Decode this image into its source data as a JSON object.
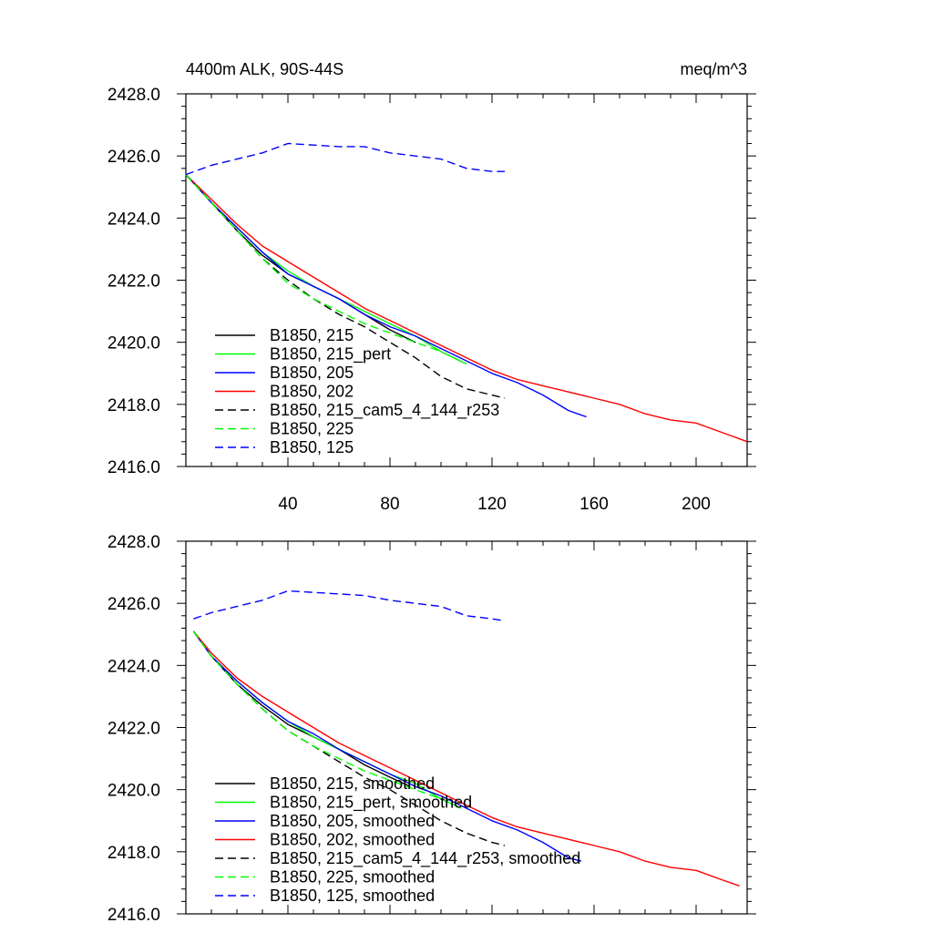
{
  "chart_data": [
    {
      "type": "line",
      "title": "4400m ALK, 90S-44S",
      "units": "meq/m^3",
      "xlabel": "",
      "ylabel": "",
      "xlim": [
        0,
        220
      ],
      "ylim": [
        2416,
        2428
      ],
      "xticks": [
        40,
        80,
        120,
        160,
        200
      ],
      "xtick_labels": [
        "40",
        "80",
        "120",
        "160",
        "200"
      ],
      "yticks": [
        2416,
        2418,
        2420,
        2422,
        2424,
        2426,
        2428
      ],
      "ytick_labels": [
        "2416.0",
        "2418.0",
        "2420.0",
        "2422.0",
        "2424.0",
        "2426.0",
        "2428.0"
      ],
      "legend_position": "bottom-left",
      "series": [
        {
          "name": "B1850, 215",
          "color": "#000000",
          "dash": "solid",
          "points": [
            [
              0,
              2425.4
            ],
            [
              10,
              2424.5
            ],
            [
              20,
              2423.6
            ],
            [
              30,
              2422.8
            ],
            [
              40,
              2422.2
            ],
            [
              50,
              2421.8
            ],
            [
              60,
              2421.4
            ],
            [
              70,
              2420.9
            ],
            [
              80,
              2420.4
            ],
            [
              90,
              2420.0
            ]
          ]
        },
        {
          "name": "B1850, 215_pert",
          "color": "#00ff00",
          "dash": "solid",
          "points": [
            [
              0,
              2425.4
            ],
            [
              10,
              2424.5
            ],
            [
              20,
              2423.7
            ],
            [
              30,
              2422.9
            ],
            [
              40,
              2422.3
            ],
            [
              50,
              2421.8
            ],
            [
              60,
              2421.4
            ],
            [
              70,
              2421.0
            ],
            [
              80,
              2420.6
            ],
            [
              90,
              2420.2
            ],
            [
              100,
              2419.7
            ],
            [
              110,
              2419.3
            ]
          ]
        },
        {
          "name": "B1850, 205",
          "color": "#0000ff",
          "dash": "solid",
          "points": [
            [
              0,
              2425.4
            ],
            [
              10,
              2424.5
            ],
            [
              20,
              2423.7
            ],
            [
              30,
              2422.9
            ],
            [
              40,
              2422.2
            ],
            [
              50,
              2421.8
            ],
            [
              60,
              2421.4
            ],
            [
              70,
              2420.9
            ],
            [
              80,
              2420.5
            ],
            [
              90,
              2420.2
            ],
            [
              100,
              2419.8
            ],
            [
              110,
              2419.4
            ],
            [
              120,
              2419.0
            ],
            [
              130,
              2418.7
            ],
            [
              140,
              2418.3
            ],
            [
              150,
              2417.8
            ],
            [
              157,
              2417.6
            ]
          ]
        },
        {
          "name": "B1850, 202",
          "color": "#ff0000",
          "dash": "solid",
          "points": [
            [
              0,
              2425.4
            ],
            [
              10,
              2424.6
            ],
            [
              20,
              2423.8
            ],
            [
              30,
              2423.1
            ],
            [
              40,
              2422.6
            ],
            [
              50,
              2422.1
            ],
            [
              60,
              2421.6
            ],
            [
              70,
              2421.1
            ],
            [
              80,
              2420.7
            ],
            [
              90,
              2420.3
            ],
            [
              100,
              2419.9
            ],
            [
              110,
              2419.5
            ],
            [
              120,
              2419.1
            ],
            [
              130,
              2418.8
            ],
            [
              140,
              2418.6
            ],
            [
              150,
              2418.4
            ],
            [
              160,
              2418.2
            ],
            [
              170,
              2418.0
            ],
            [
              180,
              2417.7
            ],
            [
              190,
              2417.5
            ],
            [
              200,
              2417.4
            ],
            [
              210,
              2417.1
            ],
            [
              220,
              2416.8
            ]
          ]
        },
        {
          "name": "B1850, 215_cam5_4_144_r253",
          "color": "#000000",
          "dash": "dashed",
          "points": [
            [
              0,
              2425.4
            ],
            [
              10,
              2424.5
            ],
            [
              20,
              2423.6
            ],
            [
              30,
              2422.7
            ],
            [
              40,
              2422.0
            ],
            [
              50,
              2421.4
            ],
            [
              60,
              2420.9
            ],
            [
              70,
              2420.5
            ],
            [
              80,
              2420.0
            ],
            [
              90,
              2419.5
            ],
            [
              100,
              2418.9
            ],
            [
              110,
              2418.5
            ],
            [
              120,
              2418.3
            ],
            [
              125,
              2418.2
            ]
          ]
        },
        {
          "name": "B1850, 225",
          "color": "#00ff00",
          "dash": "dashed",
          "points": [
            [
              0,
              2425.4
            ],
            [
              10,
              2424.5
            ],
            [
              20,
              2423.6
            ],
            [
              30,
              2422.7
            ],
            [
              40,
              2421.9
            ],
            [
              50,
              2421.4
            ],
            [
              60,
              2421.0
            ],
            [
              70,
              2420.6
            ],
            [
              80,
              2420.3
            ],
            [
              90,
              2420.0
            ],
            [
              100,
              2419.7
            ],
            [
              110,
              2419.3
            ]
          ]
        },
        {
          "name": "B1850, 125",
          "color": "#0000ff",
          "dash": "dashed",
          "points": [
            [
              0,
              2425.4
            ],
            [
              10,
              2425.7
            ],
            [
              20,
              2425.9
            ],
            [
              30,
              2426.1
            ],
            [
              40,
              2426.4
            ],
            [
              50,
              2426.35
            ],
            [
              60,
              2426.3
            ],
            [
              70,
              2426.3
            ],
            [
              80,
              2426.1
            ],
            [
              90,
              2426.0
            ],
            [
              100,
              2425.9
            ],
            [
              110,
              2425.6
            ],
            [
              120,
              2425.5
            ],
            [
              125,
              2425.5
            ]
          ]
        }
      ]
    },
    {
      "type": "line",
      "title": "",
      "xlabel": "",
      "ylabel": "",
      "xlim": [
        0,
        220
      ],
      "ylim": [
        2416,
        2428
      ],
      "yticks": [
        2416,
        2418,
        2420,
        2422,
        2424,
        2426,
        2428
      ],
      "ytick_labels": [
        "2416.0",
        "2418.0",
        "2420.0",
        "2422.0",
        "2424.0",
        "2426.0",
        "2428.0"
      ],
      "legend_position": "bottom-left",
      "series": [
        {
          "name": "B1850, 215, smoothed",
          "color": "#000000",
          "dash": "solid",
          "points": [
            [
              3,
              2425.1
            ],
            [
              10,
              2424.3
            ],
            [
              20,
              2423.4
            ],
            [
              30,
              2422.7
            ],
            [
              40,
              2422.1
            ],
            [
              50,
              2421.7
            ],
            [
              60,
              2421.3
            ],
            [
              70,
              2420.8
            ],
            [
              80,
              2420.4
            ],
            [
              88,
              2420.1
            ]
          ]
        },
        {
          "name": "B1850, 215_pert, smoothed",
          "color": "#00ff00",
          "dash": "solid",
          "points": [
            [
              3,
              2425.1
            ],
            [
              10,
              2424.3
            ],
            [
              20,
              2423.5
            ],
            [
              30,
              2422.8
            ],
            [
              40,
              2422.2
            ],
            [
              50,
              2421.7
            ],
            [
              60,
              2421.3
            ],
            [
              70,
              2420.9
            ],
            [
              80,
              2420.5
            ],
            [
              90,
              2420.2
            ],
            [
              100,
              2419.7
            ],
            [
              108,
              2419.4
            ]
          ]
        },
        {
          "name": "B1850, 205, smoothed",
          "color": "#0000ff",
          "dash": "solid",
          "points": [
            [
              3,
              2425.1
            ],
            [
              10,
              2424.3
            ],
            [
              20,
              2423.5
            ],
            [
              30,
              2422.8
            ],
            [
              40,
              2422.2
            ],
            [
              50,
              2421.8
            ],
            [
              60,
              2421.3
            ],
            [
              70,
              2420.9
            ],
            [
              80,
              2420.5
            ],
            [
              90,
              2420.1
            ],
            [
              100,
              2419.8
            ],
            [
              110,
              2419.4
            ],
            [
              120,
              2419.0
            ],
            [
              130,
              2418.7
            ],
            [
              140,
              2418.3
            ],
            [
              150,
              2417.8
            ],
            [
              155,
              2417.7
            ]
          ]
        },
        {
          "name": "B1850, 202, smoothed",
          "color": "#ff0000",
          "dash": "solid",
          "points": [
            [
              3,
              2425.1
            ],
            [
              10,
              2424.4
            ],
            [
              20,
              2423.6
            ],
            [
              30,
              2423.0
            ],
            [
              40,
              2422.5
            ],
            [
              50,
              2422.0
            ],
            [
              60,
              2421.5
            ],
            [
              70,
              2421.1
            ],
            [
              80,
              2420.7
            ],
            [
              90,
              2420.3
            ],
            [
              100,
              2419.9
            ],
            [
              110,
              2419.5
            ],
            [
              120,
              2419.1
            ],
            [
              130,
              2418.8
            ],
            [
              140,
              2418.6
            ],
            [
              150,
              2418.4
            ],
            [
              160,
              2418.2
            ],
            [
              170,
              2418.0
            ],
            [
              180,
              2417.7
            ],
            [
              190,
              2417.5
            ],
            [
              200,
              2417.4
            ],
            [
              210,
              2417.1
            ],
            [
              217,
              2416.9
            ]
          ]
        },
        {
          "name": "B1850, 215_cam5_4_144_r253, smoothed",
          "color": "#000000",
          "dash": "dashed",
          "points": [
            [
              3,
              2425.1
            ],
            [
              10,
              2424.3
            ],
            [
              20,
              2423.4
            ],
            [
              30,
              2422.6
            ],
            [
              40,
              2421.9
            ],
            [
              50,
              2421.4
            ],
            [
              60,
              2420.9
            ],
            [
              70,
              2420.4
            ],
            [
              80,
              2420.0
            ],
            [
              90,
              2419.5
            ],
            [
              100,
              2419.0
            ],
            [
              110,
              2418.6
            ],
            [
              120,
              2418.3
            ],
            [
              125,
              2418.2
            ]
          ]
        },
        {
          "name": "B1850, 225, smoothed",
          "color": "#00ff00",
          "dash": "dashed",
          "points": [
            [
              3,
              2425.1
            ],
            [
              10,
              2424.3
            ],
            [
              20,
              2423.4
            ],
            [
              30,
              2422.6
            ],
            [
              40,
              2421.9
            ],
            [
              50,
              2421.4
            ],
            [
              60,
              2421.0
            ],
            [
              70,
              2420.6
            ],
            [
              80,
              2420.3
            ],
            [
              90,
              2420.0
            ],
            [
              100,
              2419.7
            ],
            [
              108,
              2419.4
            ]
          ]
        },
        {
          "name": "B1850, 125, smoothed",
          "color": "#0000ff",
          "dash": "dashed",
          "points": [
            [
              3,
              2425.5
            ],
            [
              10,
              2425.7
            ],
            [
              20,
              2425.9
            ],
            [
              30,
              2426.1
            ],
            [
              40,
              2426.4
            ],
            [
              50,
              2426.35
            ],
            [
              60,
              2426.3
            ],
            [
              70,
              2426.25
            ],
            [
              80,
              2426.1
            ],
            [
              90,
              2426.0
            ],
            [
              100,
              2425.9
            ],
            [
              110,
              2425.6
            ],
            [
              120,
              2425.5
            ],
            [
              124,
              2425.45
            ]
          ]
        }
      ]
    }
  ]
}
